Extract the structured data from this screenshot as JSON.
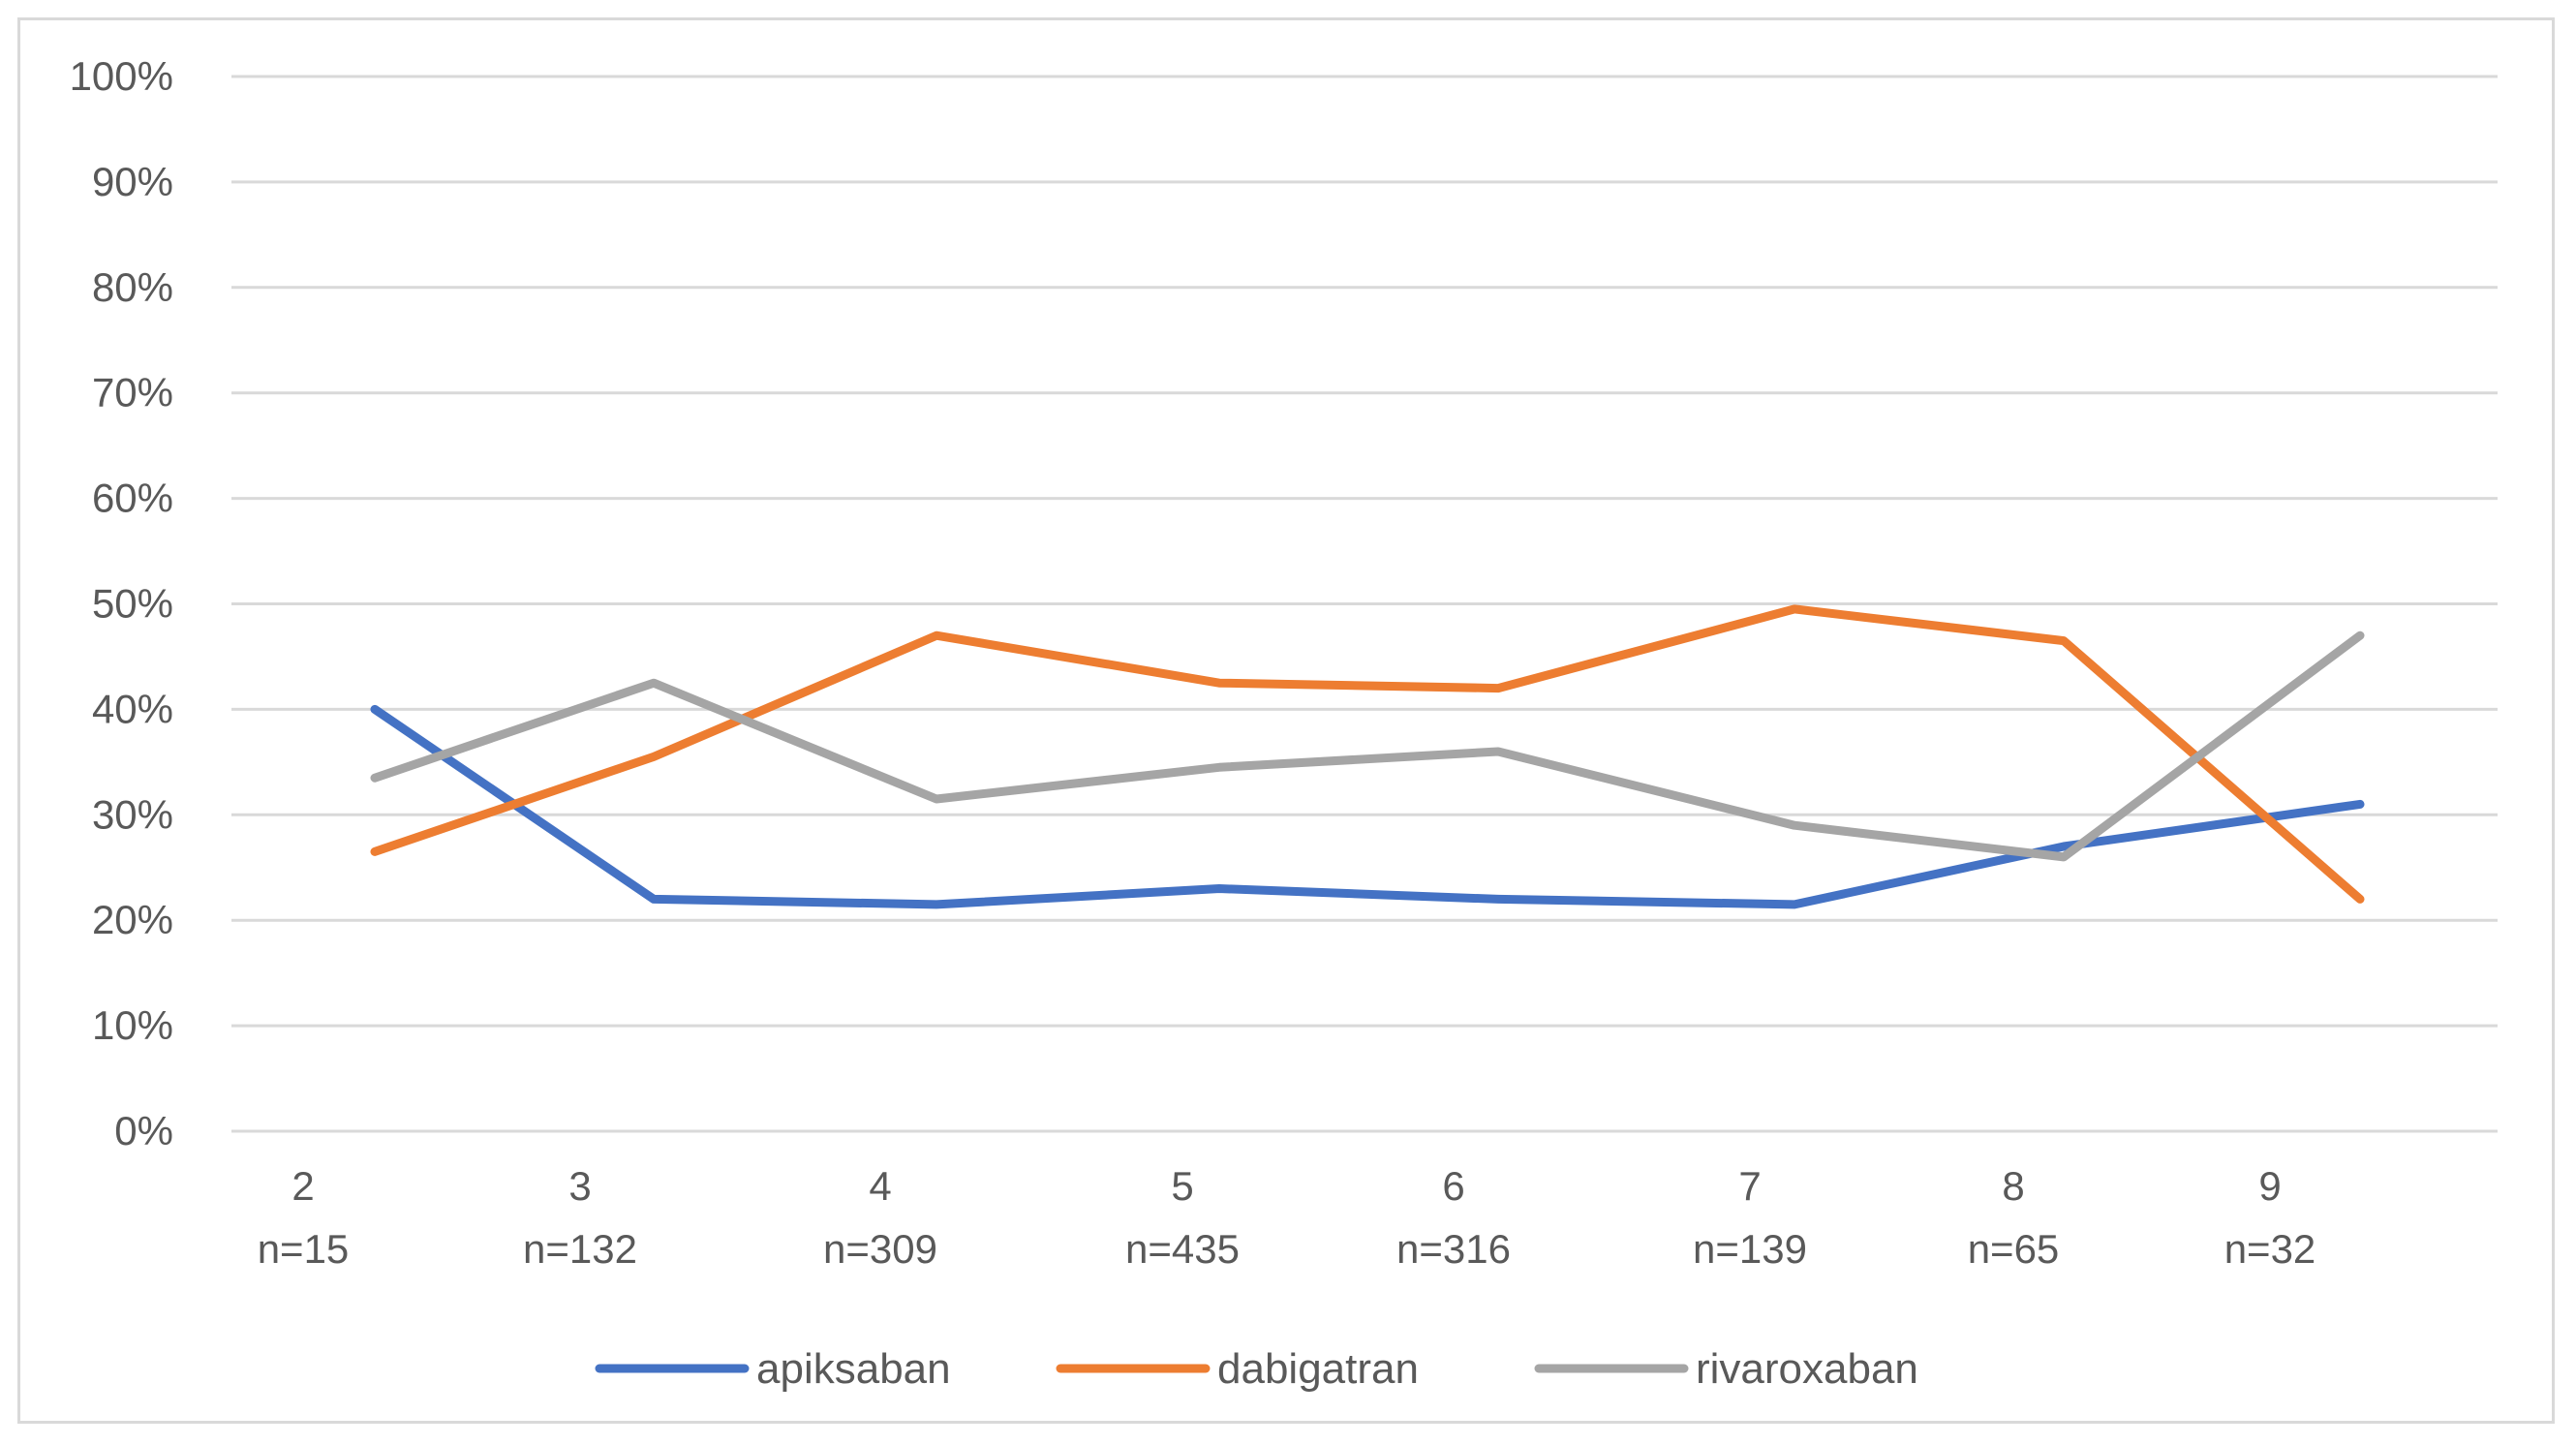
{
  "chart_data": {
    "type": "line",
    "title": "",
    "xlabel": "",
    "ylabel": "",
    "categories": [
      "2",
      "3",
      "4",
      "5",
      "6",
      "7",
      "8",
      "9"
    ],
    "category_n": [
      "n=15",
      "n=132",
      "n=309",
      "n=435",
      "n=316",
      "n=139",
      "n=65",
      "n=32"
    ],
    "ylim": [
      0,
      100
    ],
    "yticks": [
      "0%",
      "10%",
      "20%",
      "30%",
      "40%",
      "50%",
      "60%",
      "70%",
      "80%",
      "90%",
      "100%"
    ],
    "grid": true,
    "legend_position": "bottom",
    "series": [
      {
        "name": "apiksaban",
        "color": "#4472C4",
        "values": [
          40,
          22,
          21.5,
          23,
          22,
          21.5,
          27,
          31
        ]
      },
      {
        "name": "dabigatran",
        "color": "#ED7D31",
        "values": [
          26.5,
          35.5,
          47,
          42.5,
          42,
          49.5,
          46.5,
          22
        ]
      },
      {
        "name": "rivaroxaban",
        "color": "#A5A5A5",
        "values": [
          33.5,
          42.5,
          31.5,
          34.5,
          36,
          29,
          26,
          47
        ]
      }
    ]
  }
}
